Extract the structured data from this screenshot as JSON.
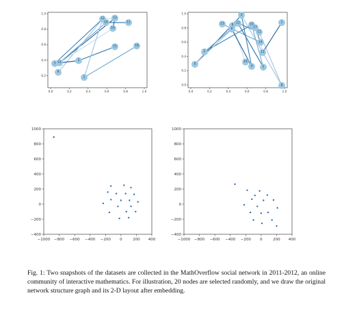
{
  "figure": {
    "panels": [
      {
        "id": "graph-left",
        "yticks": [
          "1.0",
          "0.8",
          "0.6",
          "0.4",
          "0.2"
        ],
        "xticks": [
          "0.0",
          "0.2",
          "0.4",
          "0.6",
          "0.8",
          "1.0"
        ],
        "nodes": [
          {
            "label": "12",
            "x": 0.7,
            "y": 0.91
          },
          {
            "label": "13",
            "x": 0.88,
            "y": 0.92
          },
          {
            "label": "16",
            "x": 0.75,
            "y": 0.86
          },
          {
            "label": "11",
            "x": 1.08,
            "y": 0.86
          },
          {
            "label": "19",
            "x": 0.85,
            "y": 0.78
          },
          {
            "label": "15",
            "x": 0.88,
            "y": 0.53
          },
          {
            "label": "18",
            "x": 1.2,
            "y": 0.54
          },
          {
            "label": "2",
            "x": 0.35,
            "y": 0.34
          },
          {
            "label": "3",
            "x": 0.0,
            "y": 0.3
          },
          {
            "label": "14",
            "x": 0.07,
            "y": 0.31
          },
          {
            "label": "9",
            "x": 0.05,
            "y": 0.18
          },
          {
            "label": "1",
            "x": 0.43,
            "y": 0.11
          }
        ],
        "edges": [
          [
            "14",
            "13"
          ],
          [
            "3",
            "12"
          ],
          [
            "14",
            "16"
          ],
          [
            "9",
            "12"
          ],
          [
            "14",
            "19"
          ],
          [
            "14",
            "2"
          ],
          [
            "3",
            "2"
          ],
          [
            "2",
            "15"
          ],
          [
            "1",
            "18"
          ],
          [
            "1",
            "12"
          ],
          [
            "12",
            "13"
          ],
          [
            "16",
            "11"
          ],
          [
            "13",
            "19"
          ]
        ]
      },
      {
        "id": "graph-right",
        "yticks": [
          "1.0",
          "0.8",
          "0.6",
          "0.4",
          "0.2",
          "0.0"
        ],
        "xticks": [
          "0.0",
          "0.2",
          "0.4",
          "0.6",
          "0.8",
          "1.0"
        ],
        "nodes": [
          {
            "label": "3",
            "x": 0.68,
            "y": 0.96
          },
          {
            "label": "13",
            "x": 0.4,
            "y": 0.84
          },
          {
            "label": "9",
            "x": 0.55,
            "y": 0.82
          },
          {
            "label": "12",
            "x": 0.63,
            "y": 0.85
          },
          {
            "label": "10",
            "x": 0.83,
            "y": 0.83
          },
          {
            "label": "6",
            "x": 0.54,
            "y": 0.77
          },
          {
            "label": "17",
            "x": 0.88,
            "y": 0.79
          },
          {
            "label": "11",
            "x": 0.94,
            "y": 0.73
          },
          {
            "label": "1",
            "x": 1.27,
            "y": 0.86
          },
          {
            "label": "14",
            "x": 0.96,
            "y": 0.59
          },
          {
            "label": "15",
            "x": 0.99,
            "y": 0.45
          },
          {
            "label": "2",
            "x": 0.14,
            "y": 0.46
          },
          {
            "label": "0",
            "x": 0.0,
            "y": 0.29
          },
          {
            "label": "19",
            "x": 0.74,
            "y": 0.32
          },
          {
            "label": "4",
            "x": 0.83,
            "y": 0.26
          },
          {
            "label": "5",
            "x": 1.0,
            "y": 0.25
          },
          {
            "label": "8",
            "x": 1.27,
            "y": 0.0
          }
        ],
        "edges": [
          [
            "0",
            "3"
          ],
          [
            "2",
            "10"
          ],
          [
            "13",
            "14"
          ],
          [
            "3",
            "8"
          ],
          [
            "9",
            "19"
          ],
          [
            "12",
            "5"
          ],
          [
            "6",
            "4"
          ],
          [
            "3",
            "4"
          ],
          [
            "10",
            "5"
          ],
          [
            "11",
            "8"
          ],
          [
            "14",
            "15"
          ],
          [
            "17",
            "14"
          ],
          [
            "1",
            "15"
          ],
          [
            "12",
            "11"
          ],
          [
            "2",
            "12"
          ],
          [
            "0",
            "6"
          ]
        ]
      }
    ],
    "scatter_ticks": {
      "x": [
        "−1000",
        "−800",
        "−600",
        "−400",
        "−200",
        "0",
        "200",
        "400"
      ],
      "y": [
        "1000",
        "800",
        "600",
        "400",
        "200",
        "0",
        "−200",
        "−400"
      ]
    }
  },
  "chart_data": [
    {
      "type": "scatter",
      "xlim": [
        -1000,
        400
      ],
      "ylim": [
        -400,
        1000
      ],
      "points": [
        [
          -870,
          890
        ],
        [
          -130,
          240
        ],
        [
          40,
          250
        ],
        [
          130,
          220
        ],
        [
          -170,
          160
        ],
        [
          -60,
          140
        ],
        [
          60,
          140
        ],
        [
          170,
          130
        ],
        [
          -130,
          60
        ],
        [
          0,
          50
        ],
        [
          110,
          50
        ],
        [
          220,
          30
        ],
        [
          -230,
          10
        ],
        [
          -40,
          -30
        ],
        [
          130,
          -30
        ],
        [
          -150,
          -110
        ],
        [
          70,
          -100
        ],
        [
          190,
          -100
        ],
        [
          -20,
          -190
        ],
        [
          100,
          -180
        ]
      ]
    },
    {
      "type": "scatter",
      "xlim": [
        -1000,
        400
      ],
      "ylim": [
        -400,
        1000
      ],
      "points": [
        [
          -340,
          265
        ],
        [
          -180,
          185
        ],
        [
          -20,
          175
        ],
        [
          -80,
          115
        ],
        [
          80,
          120
        ],
        [
          -120,
          65
        ],
        [
          30,
          50
        ],
        [
          160,
          55
        ],
        [
          -220,
          -10
        ],
        [
          -50,
          -30
        ],
        [
          210,
          -50
        ],
        [
          -140,
          -110
        ],
        [
          0,
          -120
        ],
        [
          90,
          -110
        ],
        [
          -100,
          -210
        ],
        [
          140,
          -210
        ],
        [
          10,
          -255
        ],
        [
          200,
          -290
        ]
      ]
    }
  ],
  "caption": "Fig. 1: Two snapshots of the datasets are collected in the MathOverflow social network in 2011-2012, an online community of interactive mathematics. For illustration, 20 nodes are selected randomly, and we draw the original network structure graph and its 2-D layout after embedding."
}
